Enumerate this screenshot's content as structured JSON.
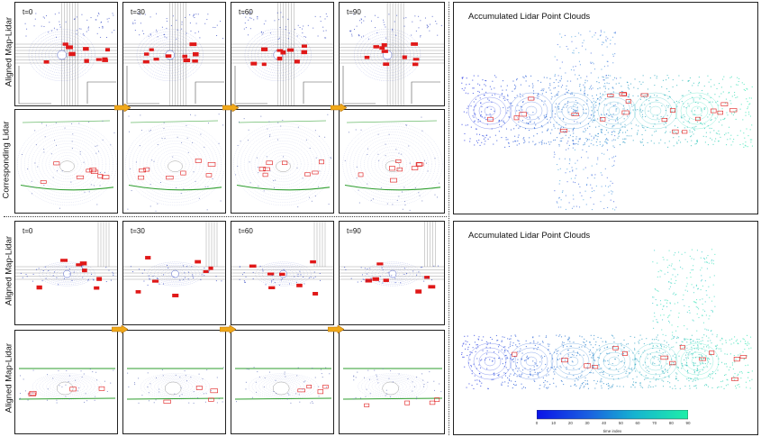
{
  "row_labels": {
    "top_map": "Aligned Map-Lidar",
    "top_lidar": "Corresponding Lidar",
    "bottom_map": "Aligned Map-Lidar",
    "bottom_lidar": "Aligned Map-Lidar"
  },
  "time_labels": [
    "t=0",
    "t=30",
    "t=60",
    "t=90"
  ],
  "accumulated_title": "Accumulated Lidar Point Clouds",
  "colorbar": {
    "ticks": [
      "0",
      "10",
      "20",
      "30",
      "40",
      "50",
      "60",
      "70",
      "80",
      "90"
    ],
    "label": "time index",
    "min": 0,
    "max": 90
  },
  "colors": {
    "lidar_blue": "#2a3fbf",
    "lidar_teal": "#1ad9a8",
    "ground_green": "#2e9e2e",
    "box_red": "#e01818",
    "arrow_orange": "#f0a818",
    "road_gray": "#7a7a7a"
  }
}
